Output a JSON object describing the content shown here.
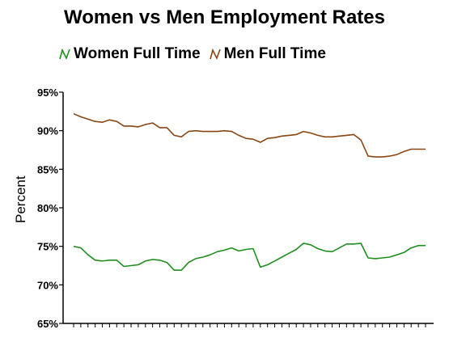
{
  "chart_data": {
    "type": "line",
    "title": "Women vs Men Employment Rates",
    "xlabel": "",
    "ylabel": "Percent",
    "ylim": [
      65,
      95
    ],
    "yticks": [
      "65%",
      "70%",
      "75%",
      "80%",
      "85%",
      "90%",
      "95%"
    ],
    "grid": false,
    "legend_position": "top",
    "x": [
      1,
      2,
      3,
      4,
      5,
      6,
      7,
      8,
      9,
      10,
      11,
      12,
      13,
      14,
      15,
      16,
      17,
      18,
      19,
      20,
      21,
      22,
      23,
      24,
      25,
      26,
      27,
      28,
      29,
      30,
      31,
      32,
      33,
      34,
      35,
      36,
      37,
      38,
      39,
      40,
      41,
      42,
      43,
      44,
      45,
      46,
      47,
      48,
      49,
      50
    ],
    "series": [
      {
        "name": "Women Full Time",
        "color": "#1f8f1f",
        "values": [
          75.0,
          74.8,
          73.9,
          73.2,
          73.1,
          73.2,
          73.2,
          72.4,
          72.5,
          72.6,
          73.1,
          73.3,
          73.2,
          72.9,
          71.9,
          71.9,
          72.9,
          73.4,
          73.6,
          73.9,
          74.3,
          74.5,
          74.8,
          74.4,
          74.6,
          74.7,
          72.3,
          72.6,
          73.1,
          73.6,
          74.1,
          74.6,
          75.4,
          75.2,
          74.7,
          74.4,
          74.3,
          74.8,
          75.3,
          75.3,
          75.4,
          73.5,
          73.4,
          73.5,
          73.6,
          73.9,
          74.2,
          74.8,
          75.1,
          75.1
        ]
      },
      {
        "name": "Men Full Time",
        "color": "#8b4513",
        "values": [
          92.2,
          91.8,
          91.5,
          91.2,
          91.1,
          91.4,
          91.2,
          90.6,
          90.6,
          90.5,
          90.8,
          91.0,
          90.4,
          90.4,
          89.4,
          89.2,
          89.9,
          90.0,
          89.9,
          89.9,
          89.9,
          90.0,
          89.9,
          89.4,
          89.0,
          88.9,
          88.5,
          89.0,
          89.1,
          89.3,
          89.4,
          89.5,
          89.9,
          89.7,
          89.4,
          89.2,
          89.2,
          89.3,
          89.4,
          89.5,
          88.8,
          86.7,
          86.6,
          86.6,
          86.7,
          86.9,
          87.3,
          87.6,
          87.6,
          87.6
        ]
      }
    ]
  }
}
